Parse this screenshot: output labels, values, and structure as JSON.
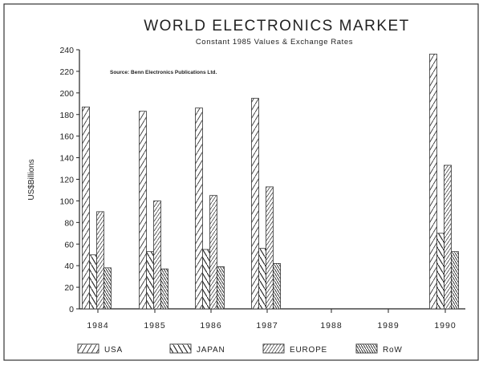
{
  "chart_data": {
    "type": "bar",
    "title": "WORLD ELECTRONICS MARKET",
    "subtitle": "Constant 1985 Values & Exchange Rates",
    "source": "Source: Benn Electronics Publications Ltd.",
    "ylabel": "US$Billions",
    "xlabel": "",
    "ylim": [
      0,
      240
    ],
    "yticks": [
      0,
      20,
      40,
      60,
      80,
      100,
      120,
      140,
      160,
      180,
      200,
      220,
      240
    ],
    "categories": [
      "1984",
      "1985",
      "1986",
      "1987",
      "1988",
      "1989",
      "1990"
    ],
    "series": [
      {
        "name": "USA",
        "values": [
          187,
          183,
          186,
          195,
          null,
          null,
          236
        ]
      },
      {
        "name": "JAPAN",
        "values": [
          50,
          53,
          55,
          56,
          null,
          null,
          70
        ]
      },
      {
        "name": "EUROPE",
        "values": [
          90,
          100,
          105,
          113,
          null,
          null,
          133
        ]
      },
      {
        "name": "RoW",
        "values": [
          38,
          37,
          39,
          42,
          null,
          null,
          53
        ]
      }
    ],
    "grid": false,
    "legend_position": "bottom"
  }
}
